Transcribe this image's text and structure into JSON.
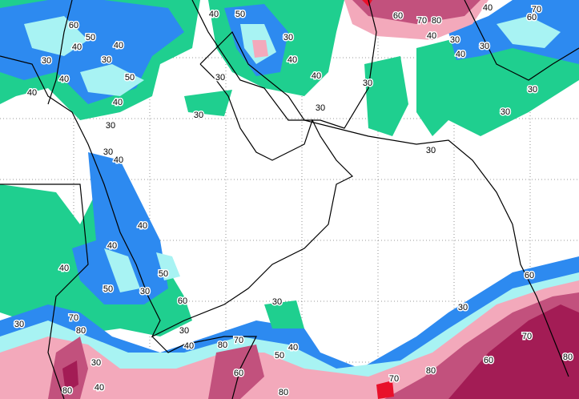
{
  "labels": [
    "40",
    "50",
    "60",
    "50",
    "40",
    "40",
    "30",
    "30",
    "50",
    "40",
    "40",
    "40",
    "30",
    "30",
    "30",
    "40",
    "30",
    "40",
    "30",
    "30",
    "60",
    "70",
    "80",
    "40",
    "30",
    "40",
    "70",
    "60",
    "40",
    "30",
    "30",
    "30",
    "30",
    "40",
    "30",
    "40",
    "40",
    "40",
    "50",
    "30",
    "50",
    "60",
    "30",
    "30",
    "60",
    "30",
    "80",
    "70",
    "40",
    "30",
    "80",
    "70",
    "50",
    "40",
    "70",
    "60",
    "80",
    "80",
    "70",
    "60",
    "30",
    "40",
    "80",
    "80"
  ]
}
